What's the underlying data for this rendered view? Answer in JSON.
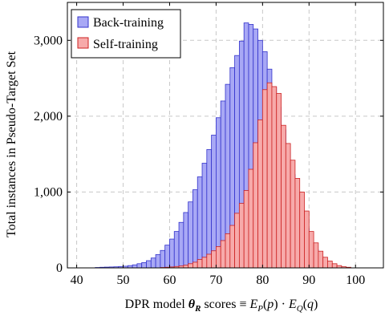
{
  "chart_data": {
    "type": "bar",
    "subtype": "overlaid-histogram",
    "title": "",
    "xlabel": "DPR model θ_R scores ≡ E_P(p) · E_Q(q)",
    "ylabel": "Total instances in Pseudo-Target Set",
    "xlim": [
      38,
      106
    ],
    "ylim": [
      0,
      3500
    ],
    "x_ticks": [
      40,
      50,
      60,
      70,
      80,
      90,
      100
    ],
    "x_tick_labels": [
      "40",
      "50",
      "60",
      "70",
      "80",
      "90",
      "100"
    ],
    "y_ticks": [
      0,
      1000,
      2000,
      3000
    ],
    "y_tick_labels": [
      "0",
      "1,000",
      "2,000",
      "3,000"
    ],
    "grid": true,
    "legend_position": "top-left",
    "bin_width": 1,
    "bin_starts": [
      44,
      45,
      46,
      47,
      48,
      49,
      50,
      51,
      52,
      53,
      54,
      55,
      56,
      57,
      58,
      59,
      60,
      61,
      62,
      63,
      64,
      65,
      66,
      67,
      68,
      69,
      70,
      71,
      72,
      73,
      74,
      75,
      76,
      77,
      78,
      79,
      80,
      81,
      82,
      83,
      84,
      85,
      86,
      87,
      88,
      89,
      90,
      91,
      92,
      93,
      94,
      95,
      96,
      97,
      98
    ],
    "series": [
      {
        "name": "Back-training",
        "fill": "#a8a8f5",
        "stroke": "#3333cc",
        "values": [
          5,
          8,
          10,
          12,
          14,
          18,
          22,
          30,
          40,
          55,
          70,
          95,
          130,
          175,
          230,
          300,
          380,
          480,
          600,
          730,
          870,
          1030,
          1200,
          1380,
          1560,
          1750,
          1980,
          2200,
          2420,
          2640,
          2800,
          2990,
          3230,
          3210,
          3150,
          3000,
          2850,
          2620,
          2380,
          2120,
          1820,
          1520,
          1230,
          960,
          720,
          520,
          360,
          240,
          150,
          90,
          55,
          30,
          18,
          10,
          5
        ]
      },
      {
        "name": "Self-training",
        "fill": "#f7aaaa",
        "stroke": "#cc2222",
        "values": [
          0,
          0,
          0,
          0,
          0,
          0,
          0,
          0,
          0,
          0,
          0,
          0,
          0,
          0,
          5,
          8,
          12,
          18,
          25,
          35,
          55,
          75,
          110,
          140,
          180,
          225,
          280,
          360,
          450,
          560,
          720,
          850,
          1020,
          1300,
          1650,
          1950,
          2350,
          2440,
          2390,
          2300,
          1880,
          1640,
          1420,
          1180,
          1000,
          750,
          480,
          330,
          220,
          140,
          90,
          55,
          30,
          15,
          8
        ]
      }
    ]
  }
}
